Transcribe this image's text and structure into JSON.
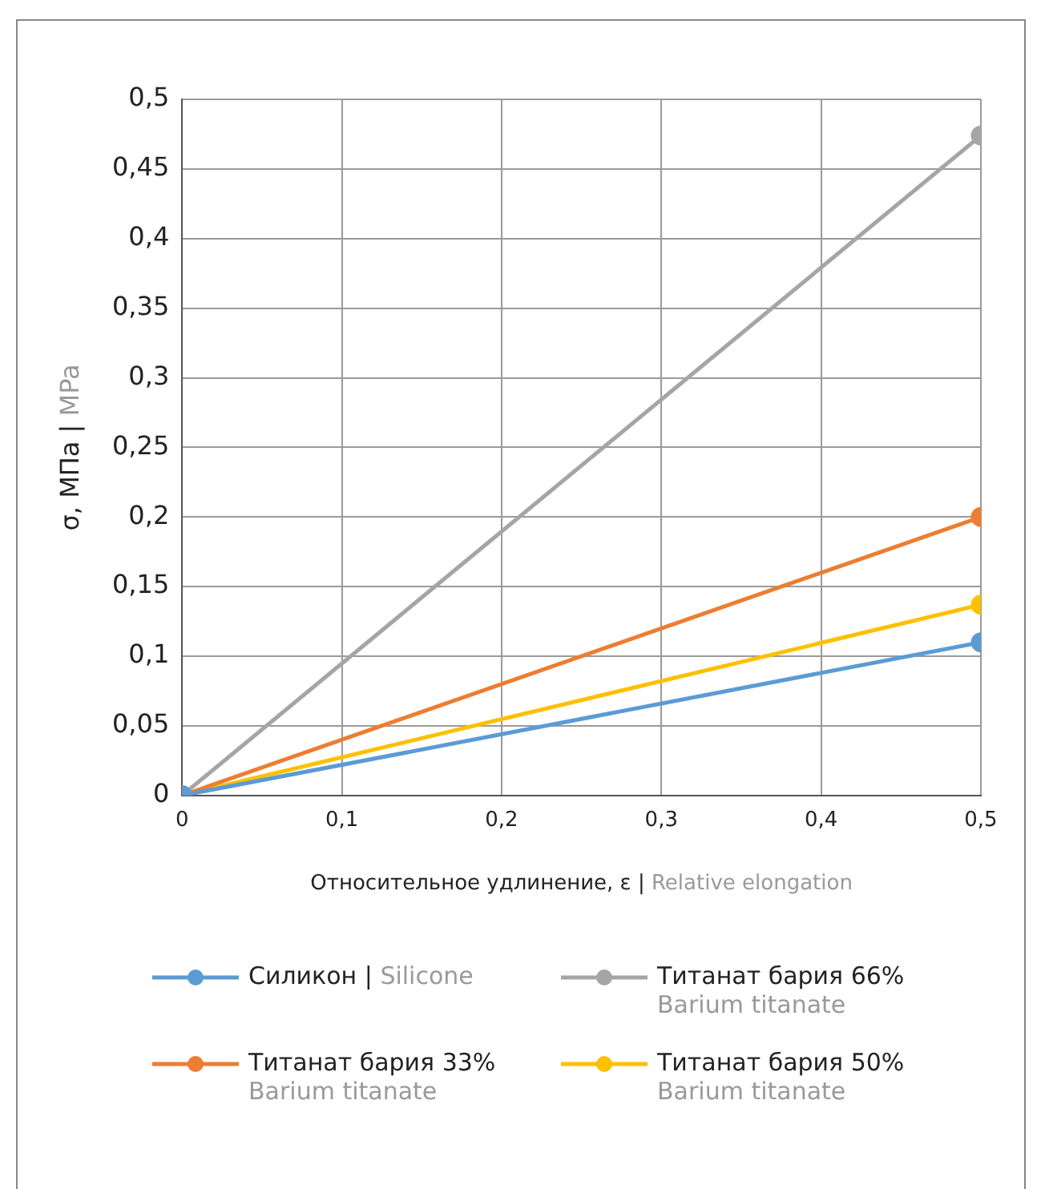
{
  "chart_data": {
    "type": "line",
    "xlabel": "Относительное удлинение, ε | Relative elongation",
    "ylabel": "σ, МПа | MPa",
    "x": [
      0,
      0.5
    ],
    "series": [
      {
        "name": "Силикон | Silicone",
        "color": "#5b9bd5",
        "values": [
          0,
          0.11
        ]
      },
      {
        "name": "Титанат бария 66%\nBarium titanate",
        "color": "#a5a5a5",
        "values": [
          0,
          0.474
        ]
      },
      {
        "name": "Титанат бария 33%\nBarium titanate",
        "color": "#ed7d31",
        "values": [
          0,
          0.2
        ]
      },
      {
        "name": "Титанат бария 50%\nBarium titanate",
        "color": "#ffc000",
        "values": [
          0,
          0.137
        ]
      }
    ],
    "xlim": [
      0,
      0.5
    ],
    "xticks": [
      0,
      {
        "value": 0.1,
        "label": "0,1"
      },
      {
        "value": 0.2,
        "label": "0,2"
      },
      {
        "value": 0.3,
        "label": "0,3"
      },
      {
        "value": 0.4,
        "label": "0,4"
      },
      {
        "value": 0.5,
        "label": "0,5"
      }
    ],
    "ylim": [
      0,
      0.5
    ],
    "yticks": [
      0,
      {
        "value": 0.05,
        "label": "0,05"
      },
      {
        "value": 0.1,
        "label": "0,1"
      },
      {
        "value": 0.15,
        "label": "0,15"
      },
      {
        "value": 0.2,
        "label": "0,2"
      },
      {
        "value": 0.25,
        "label": "0,25"
      },
      {
        "value": 0.3,
        "label": "0,3"
      },
      {
        "value": 0.35,
        "label": "0,35"
      },
      {
        "value": 0.4,
        "label": "0,4"
      },
      {
        "value": 0.45,
        "label": "0,45"
      },
      {
        "value": 0.5,
        "label": "0,5"
      }
    ],
    "grid": true,
    "legend": "bottom",
    "marker": "circle",
    "line_style": "solid"
  }
}
